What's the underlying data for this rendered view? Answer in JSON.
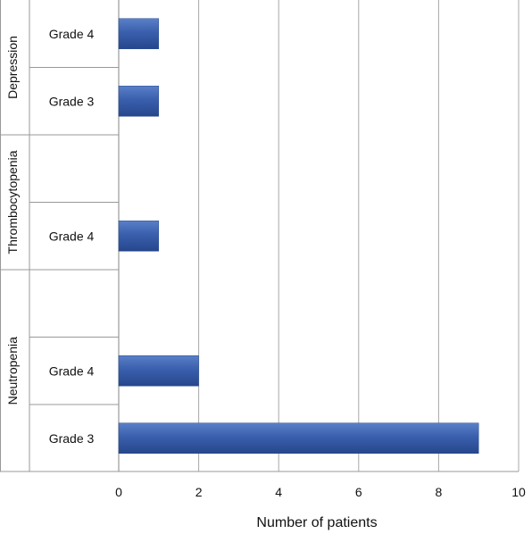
{
  "chart_data": {
    "type": "bar",
    "orientation": "horizontal",
    "title": "",
    "xlabel": "Number of patients",
    "ylabel": "",
    "xlim": [
      0,
      10
    ],
    "xticks": [
      "0",
      "2",
      "4",
      "6",
      "8",
      "10"
    ],
    "grid": true,
    "bar_color": "#3a5fad",
    "groups": [
      {
        "name": "Depression",
        "rows": [
          {
            "label": "Grade 4",
            "value": 1
          },
          {
            "label": "Grade 3",
            "value": 1
          }
        ]
      },
      {
        "name": "Thrombocytopenia",
        "rows": [
          {
            "label": "",
            "value": null
          },
          {
            "label": "Grade 4",
            "value": 1
          }
        ]
      },
      {
        "name": "Neutropenia",
        "rows": [
          {
            "label": "",
            "value": null
          },
          {
            "label": "Grade 4",
            "value": 2
          },
          {
            "label": "Grade 3",
            "value": 9
          }
        ]
      }
    ]
  }
}
